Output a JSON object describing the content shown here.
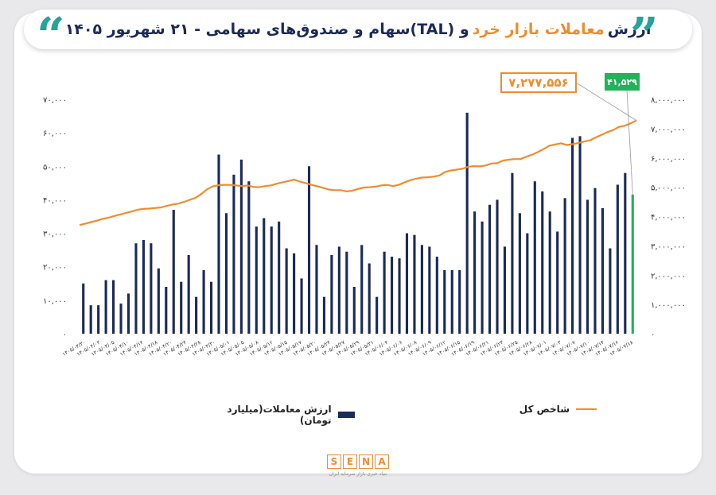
{
  "title": {
    "part1": "ارزش",
    "part2": "معاملات بازار خرد",
    "part3": "و (TAL)سهام و صندوق‌های سهامی - ۲۱ شهریور ۱۴۰۵"
  },
  "logo": {
    "letters": [
      "S",
      "E",
      "N",
      "A"
    ],
    "subtitle": "بنیاد خبری بازار سرمایه ایران"
  },
  "colors": {
    "bar": "#1c2a57",
    "bar_last": "#22b25a",
    "line": "#f08c2e",
    "callout_line": "#f08c2e",
    "callout_bar": "#22b25a"
  },
  "chart_data": {
    "type": "bar+line",
    "series": [
      {
        "name": "ارزش معاملات(میلیارد تومان)",
        "type": "bar",
        "axis": "left",
        "values": [
          15000,
          8500,
          8500,
          16000,
          16000,
          9000,
          12000,
          27000,
          28000,
          27000,
          19500,
          14000,
          37000,
          15500,
          23500,
          11000,
          19000,
          15500,
          53500,
          36000,
          47500,
          52000,
          45500,
          32000,
          34500,
          32000,
          33500,
          25500,
          24000,
          16500,
          50000,
          26500,
          11000,
          23500,
          26000,
          24500,
          14000,
          26500,
          21000,
          11000,
          24500,
          23000,
          22500,
          30000,
          29500,
          26500,
          26000,
          23000,
          19000,
          19000,
          19000,
          66000,
          36500,
          33500,
          38500,
          40000,
          26000,
          48000,
          36000,
          30000,
          45500,
          42500,
          36500,
          30500,
          40500,
          58500,
          59000,
          40000,
          43500,
          37500,
          25500,
          44500,
          48000,
          41529
        ],
        "last_value_label": "۴۱,۵۲۹"
      },
      {
        "name": "شاخص کل",
        "type": "line",
        "axis": "right",
        "values": [
          3710000,
          3760000,
          3810000,
          3860000,
          3920000,
          3960000,
          4020000,
          4070000,
          4120000,
          4170000,
          4230000,
          4260000,
          4270000,
          4290000,
          4310000,
          4360000,
          4410000,
          4440000,
          4500000,
          4570000,
          4640000,
          4770000,
          4930000,
          5030000,
          5070000,
          5080000,
          5080000,
          5060000,
          5040000,
          5060000,
          5010000,
          5000000,
          5040000,
          5060000,
          5120000,
          5170000,
          5210000,
          5260000,
          5190000,
          5140000,
          5080000,
          5030000,
          4980000,
          4920000,
          4900000,
          4900000,
          4860000,
          4880000,
          4940000,
          4990000,
          5000000,
          5020000,
          5060000,
          5080000,
          5040000,
          5080000,
          5160000,
          5240000,
          5290000,
          5330000,
          5340000,
          5360000,
          5400000,
          5520000,
          5570000,
          5600000,
          5630000,
          5700000,
          5720000,
          5710000,
          5740000,
          5810000,
          5820000,
          5910000,
          5940000,
          5960000,
          5960000,
          6040000,
          6110000,
          6200000,
          6300000,
          6420000,
          6460000,
          6500000,
          6440000,
          6470000,
          6510000,
          6560000,
          6600000,
          6700000,
          6790000,
          6880000,
          6950000,
          7060000,
          7100000,
          7180000,
          7277556
        ],
        "last_value_label": "۷,۲۷۷,۵۵۶"
      }
    ],
    "x_tick_labels": [
      "۱۴۰۵/۰۳/۳۰",
      "۱۴۰۵/۰۴/۰۳",
      "۱۴۰۵/۰۴/۰۵",
      "۱۴۰۵/۰۴/۱۰",
      "۱۴۰۵/۰۴/۱۴",
      "۱۴۰۵/۰۴/۱۸",
      "۱۴۰۵/۰۴/۲۰",
      "۱۴۰۵/۰۴/۲۴",
      "۱۴۰۵/۰۴/۲۸",
      "۱۴۰۵/۰۴/۳۰",
      "۱۴۰۵/۰۵/۰۱",
      "۱۴۰۵/۰۵/۰۵",
      "۱۴۰۵/۰۵/۰۸",
      "۱۴۰۵/۰۵/۱۲",
      "۱۴۰۵/۰۵/۱۵",
      "۱۴۰۵/۰۵/۱۷",
      "۱۴۰۵/۰۵/۲۰",
      "۱۴۰۵/۰۵/۲۴",
      "۱۴۰۵/۰۵/۲۷",
      "۱۴۰۵/۰۵/۲۹",
      "۱۴۰۵/۰۵/۳۱",
      "۱۴۰۵/۰۶/۰۴",
      "۱۴۰۵/۰۶/۰۶",
      "۱۴۰۵/۰۶/۰۸",
      "۱۴۰۵/۰۶/۰۹",
      "۱۴۰۵/۰۶/۱۲",
      "۱۴۰۵/۰۶/۱۵",
      "۱۴۰۵/۰۶/۱۹",
      "۱۴۰۵/۰۶/۲۱",
      "۱۴۰۵/۰۶/۲۳",
      "۱۴۰۵/۰۶/۲۵",
      "۱۴۰۵/۰۶/۲۸",
      "۱۴۰۵/۰۷/۰۱",
      "۱۴۰۵/۰۷/۰۳",
      "۱۴۰۵/۰۷/۰۷",
      "۱۴۰۵/۰۷/۱۰",
      "۱۴۰۵/۰۷/۱۴",
      "۱۴۰۵/۰۷/۱۶",
      "۱۴۰۵/۰۷/۱۸"
    ],
    "y_left_ticks": [
      "۷۰,۰۰۰",
      "۶۰,۰۰۰",
      "۵۰,۰۰۰",
      "۴۰,۰۰۰",
      "۳۰,۰۰۰",
      "۲۰,۰۰۰",
      "۱۰,۰۰۰",
      "۰"
    ],
    "y_right_ticks": [
      "۸,۰۰۰,۰۰۰",
      "۷,۰۰۰,۰۰۰",
      "۶,۰۰۰,۰۰۰",
      "۵,۰۰۰,۰۰۰",
      "۴,۰۰۰,۰۰۰",
      "۳,۰۰۰,۰۰۰",
      "۲,۰۰۰,۰۰۰",
      "۱,۰۰۰,۰۰۰",
      "۰"
    ],
    "y_left_range": [
      0,
      70000
    ],
    "y_right_range": [
      0,
      8000000
    ],
    "grid": true,
    "legend_placement": "bottom"
  }
}
